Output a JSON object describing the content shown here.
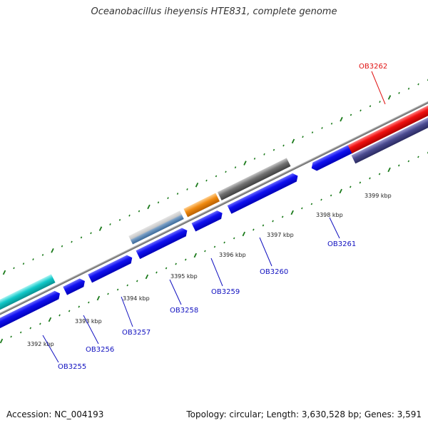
{
  "title": "Oceanobacillus iheyensis HTE831, complete genome",
  "footer": {
    "accession": "Accession: NC_004193",
    "summary": "Topology: circular; Length: 3,630,528 bp; Genes: 3,591"
  },
  "colors": {
    "blue_gene": "#0a0af0",
    "red_gene": "#f01010",
    "cyan_gene": "#10c8c8",
    "navy_gene": "#4a4a90",
    "gray_gene": "#707070",
    "orange_gene": "#f08a10",
    "steel_gene": "#5b88b8",
    "backbone": "#8a8a8a",
    "tick": "#1a7a1a",
    "label_blue": "#1010c0",
    "label_red": "#e01010"
  },
  "ticks": [
    {
      "label": "3392 kbp"
    },
    {
      "label": "3393 kbp"
    },
    {
      "label": "3394 kbp"
    },
    {
      "label": "3395 kbp"
    },
    {
      "label": "3396 kbp"
    },
    {
      "label": "3397 kbp"
    },
    {
      "label": "3398 kbp"
    },
    {
      "label": "3399 kbp"
    }
  ],
  "gene_labels": [
    {
      "name": "OB3255",
      "color": "#1010c0"
    },
    {
      "name": "OB3256",
      "color": "#1010c0"
    },
    {
      "name": "OB3257",
      "color": "#1010c0"
    },
    {
      "name": "OB3258",
      "color": "#1010c0"
    },
    {
      "name": "OB3259",
      "color": "#1010c0"
    },
    {
      "name": "OB3260",
      "color": "#1010c0"
    },
    {
      "name": "OB3261",
      "color": "#1010c0"
    },
    {
      "name": "OB3262",
      "color": "#e01010"
    }
  ]
}
